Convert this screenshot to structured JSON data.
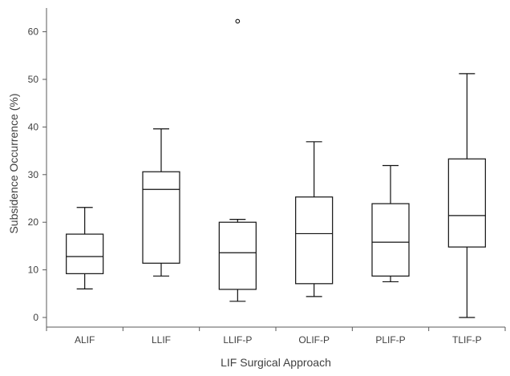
{
  "chart_data": {
    "type": "box",
    "xlabel": "LIF Surgical Approach",
    "ylabel": "Subsidence Occurrence (%)",
    "ylim": [
      -2,
      65
    ],
    "yticks": [
      0,
      10,
      20,
      30,
      40,
      50,
      60
    ],
    "grid": false,
    "legend": "none",
    "categories": [
      "ALIF",
      "LLIF",
      "LLIF-P",
      "OLIF-P",
      "PLIF-P",
      "TLIF-P"
    ],
    "boxes": [
      {
        "category": "ALIF",
        "whisker_low": 6.0,
        "q1": 9.2,
        "median": 12.8,
        "q3": 17.5,
        "whisker_high": 23.1,
        "outliers": []
      },
      {
        "category": "LLIF",
        "whisker_low": 8.7,
        "q1": 11.4,
        "median": 26.9,
        "q3": 30.6,
        "whisker_high": 39.6,
        "outliers": []
      },
      {
        "category": "LLIF-P",
        "whisker_low": 3.4,
        "q1": 5.9,
        "median": 13.6,
        "q3": 20.0,
        "whisker_high": 20.6,
        "outliers": [
          62.2
        ]
      },
      {
        "category": "OLIF-P",
        "whisker_low": 4.4,
        "q1": 7.1,
        "median": 17.6,
        "q3": 25.3,
        "whisker_high": 36.9,
        "outliers": []
      },
      {
        "category": "PLIF-P",
        "whisker_low": 7.5,
        "q1": 8.7,
        "median": 15.8,
        "q3": 23.9,
        "whisker_high": 31.9,
        "outliers": []
      },
      {
        "category": "TLIF-P",
        "whisker_low": 0.0,
        "q1": 14.8,
        "median": 21.4,
        "q3": 33.3,
        "whisker_high": 51.2,
        "outliers": []
      }
    ],
    "colors": {
      "box_stroke": "#111111",
      "box_fill": "#ffffff",
      "axis": "#595959",
      "text": "#404040"
    }
  }
}
